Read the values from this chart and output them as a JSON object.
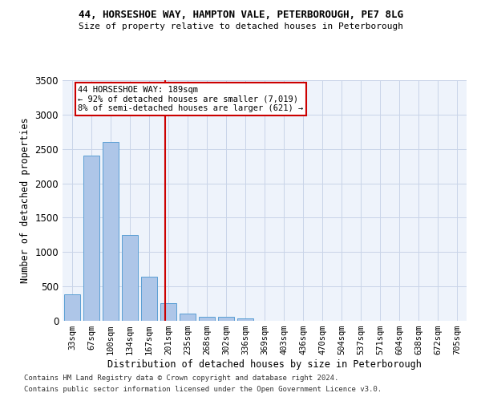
{
  "title_line1": "44, HORSESHOE WAY, HAMPTON VALE, PETERBOROUGH, PE7 8LG",
  "title_line2": "Size of property relative to detached houses in Peterborough",
  "xlabel": "Distribution of detached houses by size in Peterborough",
  "ylabel": "Number of detached properties",
  "footnote1": "Contains HM Land Registry data © Crown copyright and database right 2024.",
  "footnote2": "Contains public sector information licensed under the Open Government Licence v3.0.",
  "categories": [
    "33sqm",
    "67sqm",
    "100sqm",
    "134sqm",
    "167sqm",
    "201sqm",
    "235sqm",
    "268sqm",
    "302sqm",
    "336sqm",
    "369sqm",
    "403sqm",
    "436sqm",
    "470sqm",
    "504sqm",
    "537sqm",
    "571sqm",
    "604sqm",
    "638sqm",
    "672sqm",
    "705sqm"
  ],
  "values": [
    390,
    2400,
    2600,
    1250,
    640,
    260,
    100,
    60,
    55,
    40,
    0,
    0,
    0,
    0,
    0,
    0,
    0,
    0,
    0,
    0,
    0
  ],
  "bar_color": "#aec6e8",
  "bar_edge_color": "#5a9fd4",
  "annotation_title": "44 HORSESHOE WAY: 189sqm",
  "annotation_line2": "← 92% of detached houses are smaller (7,019)",
  "annotation_line3": "8% of semi-detached houses are larger (621) →",
  "annotation_box_color": "#cc0000",
  "vline_color": "#cc0000",
  "vline_x": 4.85,
  "bg_color": "#eef3fb",
  "grid_color": "#c8d4e8",
  "ylim": [
    0,
    3500
  ],
  "yticks": [
    0,
    500,
    1000,
    1500,
    2000,
    2500,
    3000,
    3500
  ]
}
